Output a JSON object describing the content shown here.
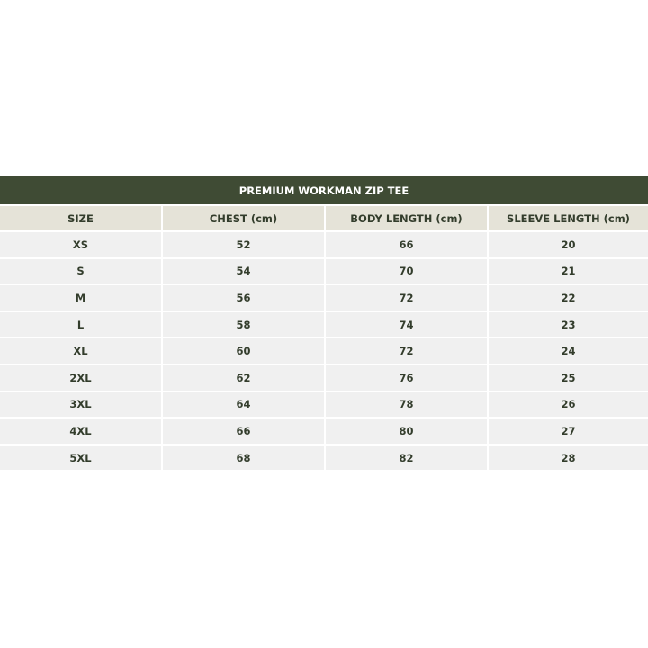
{
  "title": "PREMIUM WORKMAN ZIP TEE",
  "colors": {
    "title_bg": "#3f4b34",
    "header_bg": "#e5e3d8",
    "row_bg": "#f0f0f0",
    "text": "#333d2c"
  },
  "columns": [
    "SIZE",
    "CHEST (cm)",
    "BODY LENGTH (cm)",
    "SLEEVE LENGTH (cm)"
  ],
  "rows": [
    [
      "XS",
      "52",
      "66",
      "20"
    ],
    [
      "S",
      "54",
      "70",
      "21"
    ],
    [
      "M",
      "56",
      "72",
      "22"
    ],
    [
      "L",
      "58",
      "74",
      "23"
    ],
    [
      "XL",
      "60",
      "72",
      "24"
    ],
    [
      "2XL",
      "62",
      "76",
      "25"
    ],
    [
      "3XL",
      "64",
      "78",
      "26"
    ],
    [
      "4XL",
      "66",
      "80",
      "27"
    ],
    [
      "5XL",
      "68",
      "82",
      "28"
    ]
  ]
}
